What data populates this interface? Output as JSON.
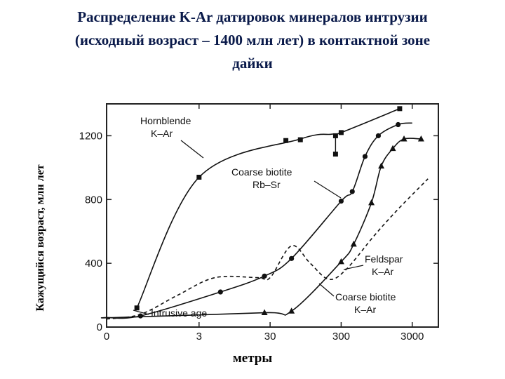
{
  "title_lines": [
    "Распределение K-Ar датировок минералов интрузии",
    "(исходный возраст – 1400 млн лет) в контактной зоне",
    "дайки"
  ],
  "chart_data": {
    "type": "line",
    "title": "Распределение K-Ar датировок минералов интрузии (исходный возраст – 1400 млн лет) в контактной зоне дайки",
    "xlabel": "метры",
    "ylabel": "Кажущийся возраст, млн лет",
    "x_scale": "log (0 marked at axis origin)",
    "xticks": [
      "0",
      "3",
      "30",
      "300",
      "3000"
    ],
    "yticks": [
      "0",
      "400",
      "800",
      "1200"
    ],
    "xlim": [
      0.15,
      7000
    ],
    "ylim": [
      0,
      1400
    ],
    "grid": false,
    "series": [
      {
        "name": "Hornblende K-Ar",
        "marker": "square",
        "line": "solid",
        "x": [
          0.4,
          3,
          80,
          220,
          300,
          2000
        ],
        "y": [
          120,
          940,
          1180,
          1210,
          1220,
          1370
        ],
        "points_x": [
          0.4,
          3,
          50,
          80,
          250,
          300,
          2000
        ],
        "points_y": [
          120,
          940,
          1170,
          1175,
          1200,
          1220,
          1370
        ]
      },
      {
        "name": "Coarse biotite Rb-Sr",
        "marker": "circle",
        "line": "solid",
        "x": [
          0.15,
          0.45,
          6,
          25,
          60,
          300,
          430,
          650,
          1000,
          1900,
          3000
        ],
        "y": [
          60,
          70,
          220,
          320,
          430,
          790,
          850,
          1070,
          1200,
          1270,
          1280
        ],
        "points_x": [
          0.45,
          6,
          25,
          60,
          300,
          430,
          650,
          1000,
          1900
        ],
        "points_y": [
          70,
          220,
          320,
          430,
          790,
          850,
          1070,
          1200,
          1270
        ]
      },
      {
        "name": "Feldspar K-Ar",
        "marker": "triangle",
        "line": "solid",
        "x": [
          0.15,
          0.2,
          25,
          60,
          300,
          450,
          800,
          1100,
          1600,
          2300,
          4000
        ],
        "y": [
          60,
          60,
          90,
          100,
          410,
          520,
          780,
          1010,
          1120,
          1180,
          1180
        ],
        "points_x": [
          25,
          60,
          300,
          450,
          800,
          1100,
          1600,
          2300,
          4000
        ],
        "points_y": [
          90,
          100,
          410,
          520,
          780,
          1010,
          1120,
          1180,
          1180
        ]
      },
      {
        "name": "Coarse biotite K-Ar",
        "marker": "none",
        "line": "dashed",
        "x": [
          0.15,
          0.45,
          1.5,
          5,
          20,
          30,
          60,
          110,
          200,
          350,
          900,
          2000,
          5000
        ],
        "y": [
          50,
          80,
          200,
          310,
          310,
          310,
          510,
          400,
          300,
          360,
          580,
          750,
          930
        ]
      }
    ],
    "annotations": [
      "Hornblende",
      "K–Ar",
      "Coarse biotite",
      "Rb–Sr",
      "Feldspar",
      "K–Ar",
      "Coarse biotite",
      "K–Ar",
      "Intrusive age"
    ]
  }
}
